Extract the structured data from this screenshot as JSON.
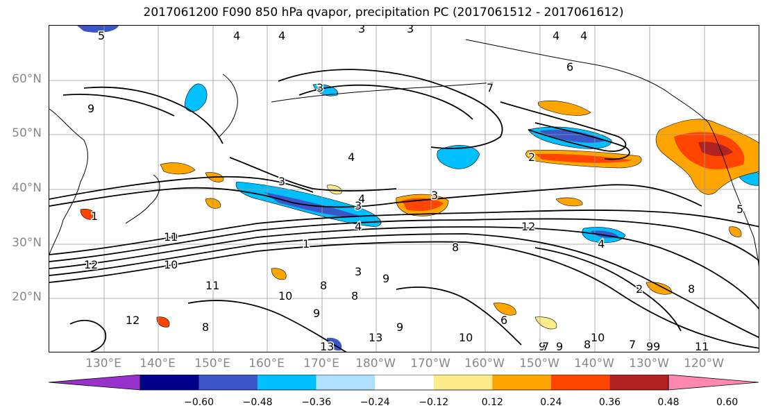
{
  "title": "2017061200 F090 850 hPa qvapor, precipitation PC (2017061512 - 2017061612)",
  "map": {
    "lat_labels": [
      "60°N",
      "50°N",
      "40°N",
      "30°N",
      "20°N"
    ],
    "lon_labels": [
      "130°E",
      "140°E",
      "150°E",
      "160°E",
      "170°E",
      "180°W",
      "170°W",
      "160°W",
      "150°W",
      "140°W",
      "130°W",
      "120°W"
    ],
    "contour_labels": [
      "5",
      "4",
      "4",
      "3",
      "3",
      "4",
      "4",
      "6",
      "7",
      "9",
      "3",
      "3",
      "4",
      "2",
      "3",
      "4",
      "3",
      "4",
      "12",
      "10",
      "1",
      "12",
      "3",
      "8",
      "9",
      "10",
      "13",
      "8",
      "9",
      "8",
      "12",
      "4",
      "11",
      "1",
      "1",
      "10",
      "9",
      "13",
      "10",
      "9",
      "8",
      "9",
      "10",
      "7",
      "11",
      "9",
      "2",
      "8",
      "5",
      "7",
      "6",
      "9",
      "8"
    ],
    "colors": {
      "contour": "#000000",
      "grid": "#9a9a9a",
      "coast": "#000000"
    }
  },
  "colorbar": {
    "colors": [
      "#9932cc",
      "#00008b",
      "#3a56c8",
      "#00bfff",
      "#b0e0ff",
      "#ffffff",
      "#ffeb8a",
      "#ffa500",
      "#ff4500",
      "#b22222",
      "#ff88b0"
    ],
    "tick_labels": [
      "−0.60",
      "−0.48",
      "−0.36",
      "−0.24",
      "−0.12",
      "0.12",
      "0.24",
      "0.36",
      "0.48",
      "0.60"
    ]
  }
}
